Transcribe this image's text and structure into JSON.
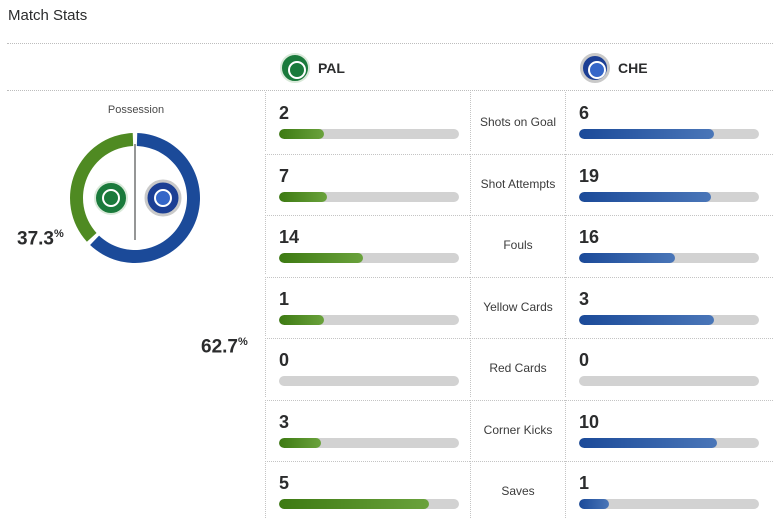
{
  "title": "Match Stats",
  "teams": {
    "home": {
      "abbr": "PAL",
      "color": "#4f8a22"
    },
    "away": {
      "abbr": "CHE",
      "color": "#1b4a99"
    }
  },
  "possession": {
    "label": "Possession",
    "home_pct": "37.3",
    "away_pct": "62.7",
    "pct_symbol": "%"
  },
  "stats": [
    {
      "label": "Shots on Goal",
      "home": "2",
      "away": "6"
    },
    {
      "label": "Shot Attempts",
      "home": "7",
      "away": "19"
    },
    {
      "label": "Fouls",
      "home": "14",
      "away": "16"
    },
    {
      "label": "Yellow Cards",
      "home": "1",
      "away": "3"
    },
    {
      "label": "Red Cards",
      "home": "0",
      "away": "0"
    },
    {
      "label": "Corner Kicks",
      "home": "3",
      "away": "10"
    },
    {
      "label": "Saves",
      "home": "5",
      "away": "1"
    }
  ]
}
